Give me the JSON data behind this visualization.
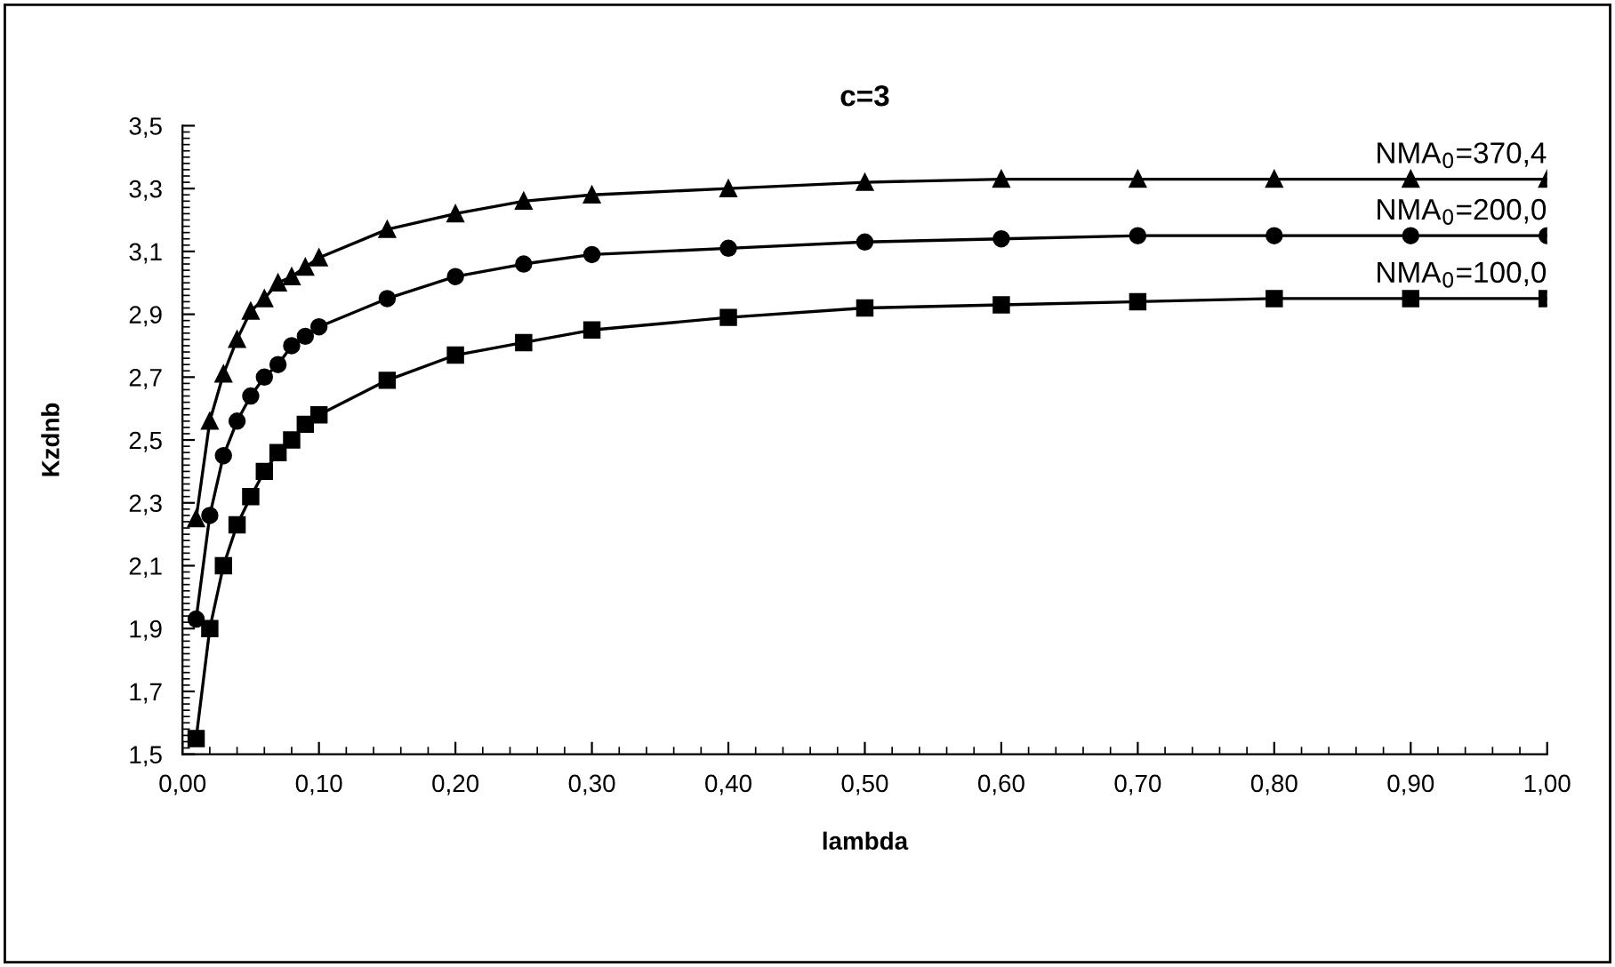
{
  "chart_data": {
    "type": "line",
    "title": "c=3",
    "xlabel": "lambda",
    "ylabel": "Kzdnb",
    "x": [
      0.01,
      0.02,
      0.03,
      0.04,
      0.05,
      0.06,
      0.07,
      0.08,
      0.09,
      0.1,
      0.15,
      0.2,
      0.25,
      0.3,
      0.4,
      0.5,
      0.6,
      0.7,
      0.8,
      0.9,
      1.0
    ],
    "series": [
      {
        "name": "NMA$_{0}$=370,4",
        "color": "#000000",
        "marker": "triangle",
        "values": [
          2.25,
          2.56,
          2.71,
          2.82,
          2.91,
          2.95,
          3.0,
          3.02,
          3.05,
          3.08,
          3.17,
          3.22,
          3.26,
          3.28,
          3.3,
          3.32,
          3.33,
          3.33,
          3.33,
          3.33,
          3.33
        ]
      },
      {
        "name": "NMA$_{0}$=200,0",
        "color": "#000000",
        "marker": "circle",
        "values": [
          1.93,
          2.26,
          2.45,
          2.56,
          2.64,
          2.7,
          2.74,
          2.8,
          2.83,
          2.86,
          2.95,
          3.02,
          3.06,
          3.09,
          3.11,
          3.13,
          3.14,
          3.15,
          3.15,
          3.15,
          3.15
        ]
      },
      {
        "name": "NMA$_{0}$=100,0",
        "color": "#000000",
        "marker": "square",
        "values": [
          1.55,
          1.9,
          2.1,
          2.23,
          2.32,
          2.4,
          2.46,
          2.5,
          2.55,
          2.58,
          2.69,
          2.77,
          2.81,
          2.85,
          2.89,
          2.92,
          2.93,
          2.94,
          2.95,
          2.95,
          2.95
        ]
      }
    ],
    "xlim": [
      0,
      1
    ],
    "ylim": [
      1.5,
      3.5
    ],
    "xticks": [
      {
        "value": 0,
        "label": "0,00"
      },
      {
        "value": 0.1,
        "label": "0,10"
      },
      {
        "value": 0.2,
        "label": "0,20"
      },
      {
        "value": 0.3,
        "label": "0,30"
      },
      {
        "value": 0.4,
        "label": "0,40"
      },
      {
        "value": 0.5,
        "label": "0,50"
      },
      {
        "value": 0.6,
        "label": "0,60"
      },
      {
        "value": 0.7,
        "label": "0,70"
      },
      {
        "value": 0.8,
        "label": "0,80"
      },
      {
        "value": 0.9,
        "label": "0,90"
      },
      {
        "value": 1,
        "label": "1,00"
      }
    ],
    "yticks": [
      {
        "value": 1.5,
        "label": "1,5"
      },
      {
        "value": 1.7,
        "label": "1,7"
      },
      {
        "value": 1.9,
        "label": "1,9"
      },
      {
        "value": 2.1,
        "label": "2,1"
      },
      {
        "value": 2.3,
        "label": "2,3"
      },
      {
        "value": 2.5,
        "label": "2,5"
      },
      {
        "value": 2.7,
        "label": "2,7"
      },
      {
        "value": 2.9,
        "label": "2,9"
      },
      {
        "value": 3.1,
        "label": "3,1"
      },
      {
        "value": 3.3,
        "label": "3,3"
      },
      {
        "value": 3.5,
        "label": "3,5"
      }
    ],
    "grid": false,
    "legend": false,
    "line_style": "solid"
  }
}
